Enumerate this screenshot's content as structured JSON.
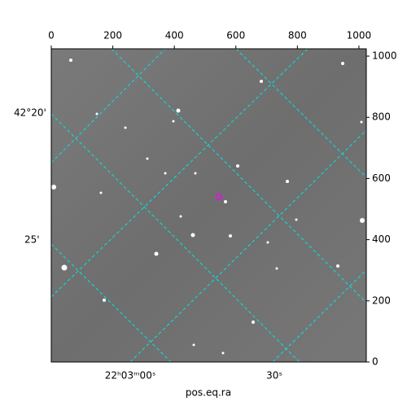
{
  "chart_data": {
    "type": "image",
    "xlabel": "pos.eq.ra",
    "xlim": [
      0,
      1024
    ],
    "ylim": [
      0,
      1024
    ],
    "xticks": [
      0,
      200,
      400,
      600,
      800,
      1000
    ],
    "yticks": [
      0,
      200,
      400,
      600,
      800,
      1000
    ],
    "world_left_labels": [
      "42°20'",
      "25'"
    ],
    "world_bottom_labels": [
      "22ʰ03ᵐ00ˢ",
      "30ˢ"
    ],
    "grid_color": "#00e5e5",
    "marker_color": "#d020d0"
  }
}
